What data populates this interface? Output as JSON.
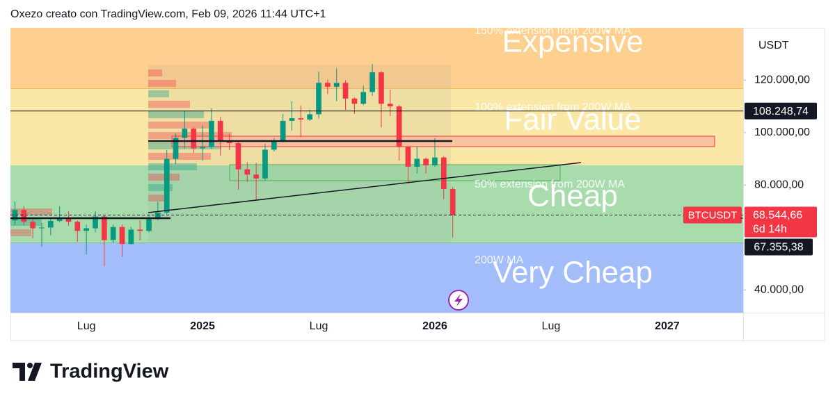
{
  "header": "Oxezo creato con TradingView.com, Feb 09, 2026 11:44 UTC+1",
  "chart_data": {
    "type": "candlestick",
    "currency": "USDT",
    "up_color": "#089981",
    "down_color": "#f23645",
    "categories": [
      null,
      null,
      null,
      null,
      null,
      null,
      null,
      null,
      "Lug",
      null,
      null,
      null,
      null,
      null,
      null,
      null,
      null,
      null,
      null,
      null,
      null,
      "2025",
      null,
      null,
      null,
      null,
      null,
      null,
      null,
      null,
      null,
      null,
      null,
      null,
      "Lug",
      null,
      null,
      null,
      null,
      null,
      null,
      null,
      null,
      null,
      null,
      null,
      null,
      "2026",
      null,
      null,
      null,
      null,
      null,
      null,
      null,
      null,
      null,
      null,
      null,
      null,
      "Lug",
      null,
      null,
      null,
      null,
      null,
      null,
      null,
      null,
      null,
      null,
      null,
      null,
      "2027",
      null,
      null,
      null,
      null,
      null,
      null,
      null,
      null
    ],
    "open": [
      66500,
      70500,
      66000,
      63500,
      63800,
      66300,
      67500,
      66000,
      62500,
      63500,
      68000,
      59000,
      64000,
      57500,
      63000,
      62500,
      67000,
      69500,
      90000,
      98000,
      101500,
      94000,
      94500,
      104500,
      97000,
      96000,
      86000,
      84000,
      82500,
      93500,
      96500,
      104500,
      105500,
      105000,
      107000,
      119000,
      117500,
      119000,
      113000,
      111000,
      115500,
      123000,
      111000,
      110000,
      94500,
      87000,
      90000,
      87500,
      90500,
      78500,
      null,
      null,
      null,
      null,
      null,
      null,
      null,
      null,
      null,
      null,
      null,
      null,
      null,
      null,
      null,
      null,
      null,
      null,
      null,
      null,
      null,
      null,
      null,
      null,
      null,
      null,
      null,
      null,
      null,
      null,
      null,
      null
    ],
    "high": [
      73800,
      72000,
      67200,
      65500,
      67500,
      71900,
      70000,
      66500,
      64900,
      70000,
      68500,
      65000,
      65000,
      64000,
      66500,
      68500,
      73600,
      93400,
      99600,
      108300,
      102000,
      102700,
      109300,
      106000,
      99500,
      96500,
      88700,
      88500,
      95700,
      97900,
      107100,
      112000,
      110400,
      108800,
      123200,
      120200,
      124500,
      120000,
      113500,
      117900,
      126200,
      123500,
      116400,
      110500,
      94800,
      94600,
      90500,
      97900,
      91000,
      79300,
      null,
      null,
      null,
      null,
      null,
      null,
      null,
      null,
      null,
      null,
      null,
      null,
      null,
      null,
      null,
      null,
      null,
      null,
      null,
      null,
      null,
      null,
      null,
      null,
      null,
      null,
      null,
      null,
      null,
      null,
      null,
      null
    ],
    "low": [
      64500,
      64500,
      59600,
      56500,
      60800,
      65800,
      64500,
      58400,
      53500,
      62000,
      49000,
      57800,
      52600,
      57300,
      58900,
      61900,
      66500,
      68800,
      88000,
      94000,
      92200,
      89300,
      93800,
      91200,
      93400,
      78200,
      81200,
      74500,
      81800,
      92800,
      96300,
      100700,
      98200,
      104500,
      105400,
      114700,
      112000,
      108700,
      107200,
      110500,
      114000,
      102000,
      106300,
      89300,
      80600,
      84400,
      84500,
      86900,
      74600,
      60000,
      null,
      null,
      null,
      null,
      null,
      null,
      null,
      null,
      null,
      null,
      null,
      null,
      null,
      null,
      null,
      null,
      null,
      null,
      null,
      null,
      null,
      null,
      null,
      null,
      null,
      null,
      null,
      null,
      null,
      null,
      null,
      null
    ],
    "close": [
      70500,
      66000,
      63500,
      63800,
      66300,
      67500,
      66000,
      62500,
      63500,
      68000,
      59000,
      64000,
      57500,
      63000,
      62500,
      67000,
      69500,
      90000,
      98000,
      101500,
      94000,
      94500,
      104500,
      97000,
      96000,
      86000,
      84000,
      82500,
      93500,
      96500,
      104500,
      105500,
      105000,
      107000,
      119000,
      117500,
      119000,
      113000,
      111000,
      115500,
      123000,
      111000,
      110000,
      94500,
      87000,
      90000,
      87500,
      90500,
      78500,
      68544.66,
      null,
      null,
      null,
      null,
      null,
      null,
      null,
      null,
      null,
      null,
      null,
      null,
      null,
      null,
      null,
      null,
      null,
      null,
      null,
      null,
      null,
      null,
      null,
      null,
      null,
      null,
      null,
      null,
      null,
      null,
      null,
      null
    ],
    "ylim": [
      31300,
      140000
    ],
    "yticks": [
      {
        "value": 40000,
        "label": "40.000,00"
      },
      {
        "value": 80000,
        "label": "80.000,00"
      },
      {
        "value": 100000,
        "label": "100.000,00"
      },
      {
        "value": 120000,
        "label": "120.000,00"
      }
    ],
    "zones": [
      {
        "label": "Expensive",
        "note": "150% extension from 200W MA"
      },
      {
        "label": "Fair Value",
        "note": "100% extension from 200W MA"
      },
      {
        "label": "Cheap",
        "note": "50% extension from 200W MA"
      },
      {
        "label": "Very Cheap",
        "note": "200W MA"
      }
    ],
    "level": {
      "value": 108248.74,
      "label": "108.248,74"
    },
    "last_price": {
      "symbol": "BTCUSDT",
      "value": 68544.66,
      "label": "68.544,66",
      "countdown": "6d 14h"
    },
    "ma_200w": {
      "value": 67355.38,
      "label": "67.355,38"
    }
  },
  "footer": {
    "brand": "TradingView"
  }
}
